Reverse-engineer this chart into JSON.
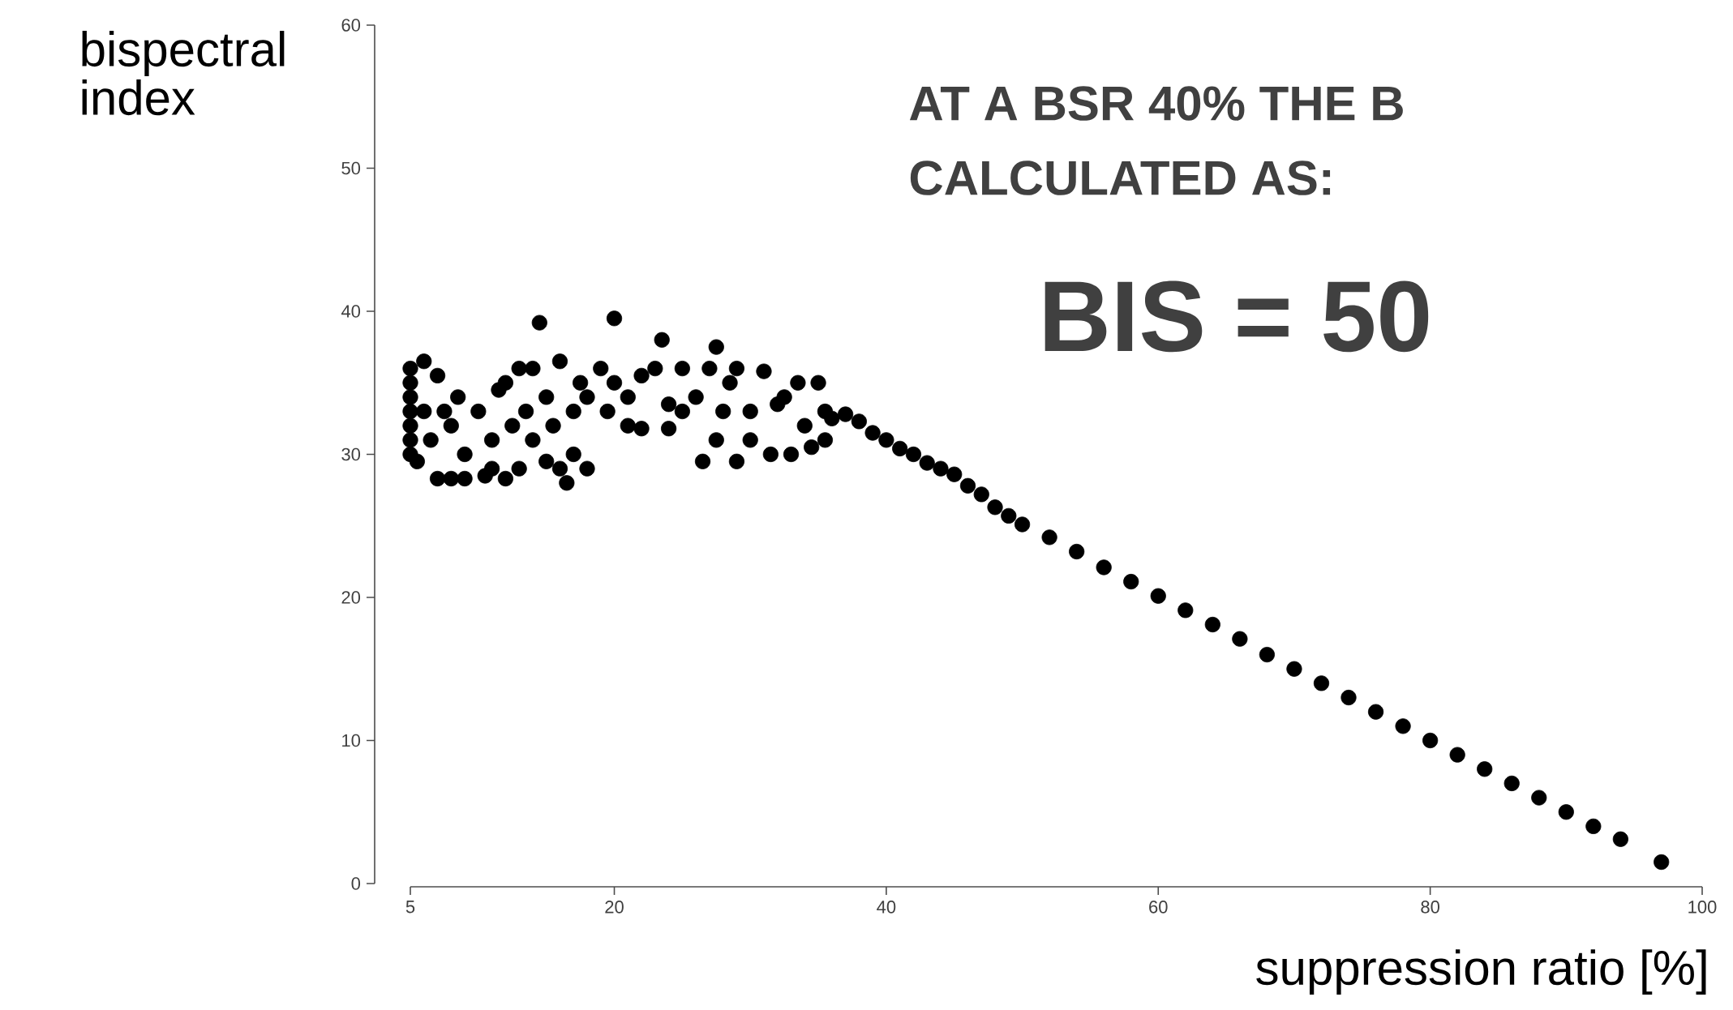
{
  "chart_data": {
    "type": "scatter",
    "xlabel": "suppression ratio [%]",
    "ylabel": "bispectral index",
    "annotations": [
      "AT A BSR 40% THE B",
      "CALCULATED AS:",
      "BIS = 50"
    ],
    "xlim": [
      5,
      100
    ],
    "xticks": [
      5,
      20,
      40,
      60,
      80,
      100
    ],
    "ylim": [
      0,
      60
    ],
    "yticks": [
      0,
      10,
      20,
      30,
      40,
      50,
      60
    ],
    "grid": false,
    "series": [
      {
        "color": "#000000",
        "x": [
          5,
          5,
          5,
          5,
          5,
          5,
          5,
          5.5,
          6,
          6,
          6.5,
          7,
          7,
          7.5,
          8,
          8,
          8.5,
          9,
          9,
          10,
          10.5,
          11,
          11,
          11.5,
          12,
          12,
          12.5,
          13,
          13,
          13.5,
          14,
          14,
          14.5,
          15,
          15,
          15.5,
          16,
          16,
          16.5,
          17,
          17,
          17.5,
          18,
          18,
          19,
          19.5,
          20,
          20,
          21,
          21,
          22,
          22,
          23,
          23.5,
          24,
          24,
          25,
          25,
          26,
          26.5,
          27,
          27.5,
          27.5,
          28,
          28.5,
          29,
          29,
          30,
          30,
          31,
          31.5,
          32,
          32.5,
          33,
          33.5,
          34,
          34.5,
          35,
          35.5,
          35.5,
          36,
          37,
          38,
          39,
          40,
          41,
          42,
          43,
          44,
          45,
          46,
          47,
          48,
          49,
          50,
          52,
          54,
          56,
          58,
          60,
          62,
          64,
          66,
          68,
          70,
          72,
          74,
          76,
          78,
          80,
          82,
          84,
          86,
          88,
          90,
          92,
          94,
          97
        ],
        "values": [
          36,
          35,
          34,
          33,
          32,
          31,
          30,
          29.5,
          36.5,
          33,
          31,
          28.3,
          35.5,
          33,
          28.3,
          32,
          34,
          30,
          28.3,
          33,
          28.5,
          29,
          31,
          34.5,
          28.3,
          35,
          32,
          36,
          29,
          33,
          31,
          36,
          39.2,
          34,
          29.5,
          32,
          36.5,
          29,
          28,
          33,
          30,
          35,
          29,
          34,
          36,
          33,
          39.5,
          35,
          32,
          34,
          35.5,
          31.8,
          36,
          38,
          33.5,
          31.8,
          36,
          33,
          34,
          29.5,
          36,
          37.5,
          31,
          33,
          35,
          29.5,
          36,
          33,
          31,
          35.8,
          30,
          33.5,
          34,
          30,
          35,
          32,
          30.5,
          35,
          33,
          31,
          32.5,
          32.8,
          32.3,
          31.5,
          31,
          30.4,
          30,
          29.4,
          29,
          28.6,
          27.8,
          27.2,
          26.3,
          25.7,
          25.1,
          24.2,
          23.2,
          22.1,
          21.1,
          20.1,
          19.1,
          18.1,
          17.1,
          16,
          15,
          14,
          13,
          12,
          11,
          10,
          9,
          8,
          7,
          6,
          5,
          4,
          3.1,
          1.5
        ]
      }
    ]
  }
}
